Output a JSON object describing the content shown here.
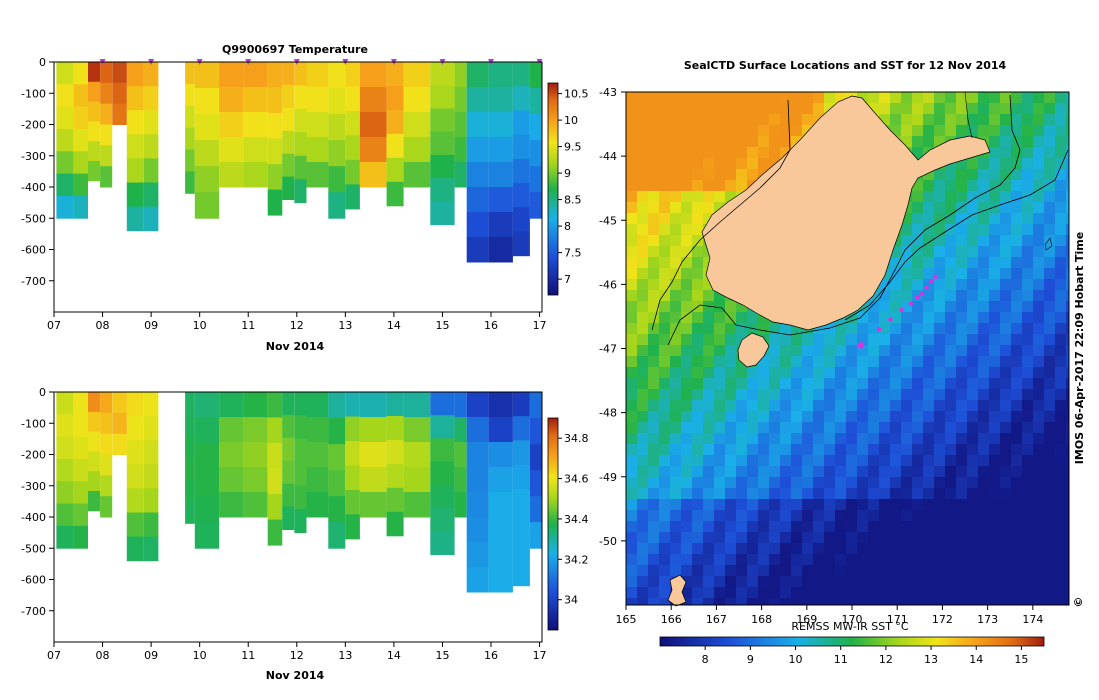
{
  "chart_data": [
    {
      "type": "heatmap",
      "title": "Q9900697  Temperature",
      "xlabel": "Nov 2014",
      "ylabel": "",
      "xlim": [
        7,
        17.05
      ],
      "ylim": [
        -800,
        0
      ],
      "x_tick_labels": [
        "07",
        "08",
        "09",
        "10",
        "11",
        "12",
        "13",
        "14",
        "15",
        "16",
        "17"
      ],
      "y_ticks": [
        0,
        -100,
        -200,
        -300,
        -400,
        -500,
        -600,
        -700
      ],
      "colorbar": {
        "min": 6.7,
        "max": 10.7,
        "ticks": [
          7,
          7.5,
          8,
          8.5,
          9,
          9.5,
          10,
          10.5
        ],
        "tick_labels": [
          "7",
          "7.5",
          "8",
          "8.5",
          "9",
          "9.5",
          "10",
          "10.5"
        ]
      },
      "surface_markers_x": [
        8,
        9,
        10,
        11,
        12,
        13,
        14,
        15,
        16,
        17
      ],
      "profiles": [
        {
          "x": 7.05,
          "w": 0.35,
          "d": -500,
          "s": [
            9.4,
            9.6,
            9.5,
            9.3,
            9.0,
            8.6,
            8.2
          ]
        },
        {
          "x": 7.4,
          "w": 0.3,
          "d": -500,
          "s": [
            9.6,
            9.8,
            9.7,
            9.5,
            9.2,
            8.8,
            8.3
          ]
        },
        {
          "x": 7.7,
          "w": 0.25,
          "d": -380,
          "s": [
            10.6,
            10.0,
            9.8,
            9.6,
            9.3,
            9.0
          ]
        },
        {
          "x": 7.95,
          "w": 0.25,
          "d": -400,
          "s": [
            10.4,
            10.2,
            9.9,
            9.6,
            9.3,
            8.9
          ]
        },
        {
          "x": 8.2,
          "w": 0.3,
          "d": -200,
          "s": [
            10.5,
            10.4,
            10.3
          ]
        },
        {
          "x": 8.5,
          "w": 0.35,
          "d": -540,
          "s": [
            10.0,
            9.8,
            9.6,
            9.4,
            9.2,
            8.7,
            8.4
          ]
        },
        {
          "x": 8.85,
          "w": 0.3,
          "d": -540,
          "s": [
            9.9,
            9.7,
            9.5,
            9.3,
            9.0,
            8.6,
            8.3
          ]
        },
        {
          "x": 9.7,
          "w": 0.2,
          "d": -420,
          "s": [
            9.8,
            9.6,
            9.4,
            9.2,
            9.0,
            8.8
          ]
        },
        {
          "x": 9.9,
          "w": 0.5,
          "d": -500,
          "s": [
            9.8,
            9.6,
            9.5,
            9.3,
            9.1,
            9.0
          ]
        },
        {
          "x": 10.4,
          "w": 0.5,
          "d": -400,
          "s": [
            10.0,
            9.9,
            9.7,
            9.5,
            9.3
          ]
        },
        {
          "x": 10.9,
          "w": 0.5,
          "d": -400,
          "s": [
            10.0,
            9.8,
            9.6,
            9.4,
            9.2
          ]
        },
        {
          "x": 11.4,
          "w": 0.3,
          "d": -490,
          "s": [
            9.9,
            9.8,
            9.6,
            9.4,
            9.1,
            8.7
          ]
        },
        {
          "x": 11.7,
          "w": 0.25,
          "d": -440,
          "s": [
            9.9,
            9.7,
            9.6,
            9.3,
            9.0,
            8.7
          ]
        },
        {
          "x": 11.95,
          "w": 0.25,
          "d": -450,
          "s": [
            9.8,
            9.6,
            9.4,
            9.2,
            8.9,
            8.6
          ]
        },
        {
          "x": 12.2,
          "w": 0.45,
          "d": -400,
          "s": [
            9.7,
            9.6,
            9.4,
            9.2,
            8.9
          ]
        },
        {
          "x": 12.65,
          "w": 0.35,
          "d": -500,
          "s": [
            9.6,
            9.5,
            9.3,
            9.1,
            8.8,
            8.5
          ]
        },
        {
          "x": 13.0,
          "w": 0.3,
          "d": -470,
          "s": [
            9.7,
            9.6,
            9.4,
            9.2,
            9.0,
            8.6
          ]
        },
        {
          "x": 13.3,
          "w": 0.55,
          "d": -400,
          "s": [
            10.0,
            10.2,
            10.4,
            10.2,
            9.8
          ]
        },
        {
          "x": 13.85,
          "w": 0.35,
          "d": -460,
          "s": [
            9.9,
            10.0,
            9.9,
            9.6,
            9.2,
            8.8
          ]
        },
        {
          "x": 14.2,
          "w": 0.55,
          "d": -400,
          "s": [
            9.7,
            9.6,
            9.4,
            9.2,
            8.9
          ]
        },
        {
          "x": 14.75,
          "w": 0.5,
          "d": -520,
          "s": [
            9.3,
            9.2,
            9.0,
            8.9,
            8.7,
            8.5,
            8.4
          ]
        },
        {
          "x": 15.25,
          "w": 0.25,
          "d": -400,
          "s": [
            9.1,
            9.0,
            8.9,
            8.8,
            8.6
          ]
        },
        {
          "x": 15.5,
          "w": 0.45,
          "d": -640,
          "s": [
            8.6,
            8.4,
            8.2,
            8.0,
            7.8,
            7.6,
            7.4,
            7.2
          ]
        },
        {
          "x": 15.95,
          "w": 0.5,
          "d": -640,
          "s": [
            8.5,
            8.4,
            8.2,
            8.0,
            7.8,
            7.5,
            7.2,
            7.0
          ]
        },
        {
          "x": 16.45,
          "w": 0.35,
          "d": -620,
          "s": [
            8.5,
            8.3,
            8.0,
            7.9,
            7.7,
            7.5,
            7.3,
            7.2
          ]
        },
        {
          "x": 16.8,
          "w": 0.25,
          "d": -500,
          "s": [
            8.7,
            8.4,
            8.1,
            7.9,
            7.7,
            7.5
          ]
        }
      ]
    },
    {
      "type": "heatmap",
      "title": "",
      "xlabel": "Nov 2014",
      "ylabel": "",
      "xlim": [
        7,
        17.05
      ],
      "ylim": [
        -800,
        0
      ],
      "x_tick_labels": [
        "07",
        "08",
        "09",
        "10",
        "11",
        "12",
        "13",
        "14",
        "15",
        "16",
        "17"
      ],
      "y_ticks": [
        0,
        -100,
        -200,
        -300,
        -400,
        -500,
        -600,
        -700
      ],
      "colorbar": {
        "min": 33.85,
        "max": 34.9,
        "ticks": [
          34,
          34.2,
          34.4,
          34.6,
          34.8
        ],
        "tick_labels": [
          "34",
          "34.2",
          "34.4",
          "34.6",
          "34.8"
        ]
      },
      "profiles": [
        {
          "x": 7.05,
          "w": 0.35,
          "d": -500,
          "s": [
            34.55,
            34.58,
            34.56,
            34.52,
            34.48,
            34.42,
            34.36
          ]
        },
        {
          "x": 7.4,
          "w": 0.3,
          "d": -500,
          "s": [
            34.6,
            34.6,
            34.58,
            34.55,
            34.5,
            34.44,
            34.38
          ]
        },
        {
          "x": 7.7,
          "w": 0.25,
          "d": -380,
          "s": [
            34.75,
            34.65,
            34.6,
            34.56,
            34.5,
            34.4
          ]
        },
        {
          "x": 7.95,
          "w": 0.25,
          "d": -400,
          "s": [
            34.7,
            34.66,
            34.62,
            34.58,
            34.52,
            34.44
          ]
        },
        {
          "x": 8.2,
          "w": 0.3,
          "d": -200,
          "s": [
            34.65,
            34.68,
            34.62
          ]
        },
        {
          "x": 8.5,
          "w": 0.35,
          "d": -540,
          "s": [
            34.62,
            34.6,
            34.58,
            34.56,
            34.52,
            34.42,
            34.36
          ]
        },
        {
          "x": 8.85,
          "w": 0.3,
          "d": -540,
          "s": [
            34.6,
            34.58,
            34.56,
            34.54,
            34.5,
            34.4,
            34.35
          ]
        },
        {
          "x": 9.7,
          "w": 0.2,
          "d": -420,
          "s": [
            34.35,
            34.36,
            34.37,
            34.38,
            34.37,
            34.36
          ]
        },
        {
          "x": 9.9,
          "w": 0.5,
          "d": -500,
          "s": [
            34.34,
            34.36,
            34.38,
            34.38,
            34.37,
            34.36
          ]
        },
        {
          "x": 10.4,
          "w": 0.5,
          "d": -400,
          "s": [
            34.36,
            34.44,
            34.46,
            34.44,
            34.4
          ]
        },
        {
          "x": 10.9,
          "w": 0.5,
          "d": -400,
          "s": [
            34.38,
            34.46,
            34.48,
            34.46,
            34.42
          ]
        },
        {
          "x": 11.4,
          "w": 0.3,
          "d": -490,
          "s": [
            34.4,
            34.5,
            34.55,
            34.56,
            34.5,
            34.4
          ]
        },
        {
          "x": 11.7,
          "w": 0.25,
          "d": -440,
          "s": [
            34.36,
            34.42,
            34.46,
            34.44,
            34.4,
            34.36
          ]
        },
        {
          "x": 11.95,
          "w": 0.25,
          "d": -450,
          "s": [
            34.36,
            34.4,
            34.42,
            34.42,
            34.4,
            34.36
          ]
        },
        {
          "x": 12.2,
          "w": 0.45,
          "d": -400,
          "s": [
            34.36,
            34.4,
            34.42,
            34.4,
            34.38
          ]
        },
        {
          "x": 12.65,
          "w": 0.35,
          "d": -500,
          "s": [
            34.3,
            34.38,
            34.44,
            34.42,
            34.38,
            34.34
          ]
        },
        {
          "x": 13.0,
          "w": 0.3,
          "d": -470,
          "s": [
            34.28,
            34.48,
            34.54,
            34.5,
            34.44,
            34.38
          ]
        },
        {
          "x": 13.3,
          "w": 0.55,
          "d": -400,
          "s": [
            34.28,
            34.5,
            34.58,
            34.54,
            34.44
          ]
        },
        {
          "x": 13.85,
          "w": 0.35,
          "d": -460,
          "s": [
            34.3,
            34.5,
            34.56,
            34.52,
            34.44,
            34.38
          ]
        },
        {
          "x": 14.2,
          "w": 0.55,
          "d": -400,
          "s": [
            34.3,
            34.46,
            34.52,
            34.5,
            34.42
          ]
        },
        {
          "x": 14.75,
          "w": 0.5,
          "d": -520,
          "s": [
            34.1,
            34.3,
            34.4,
            34.38,
            34.36,
            34.34,
            34.32
          ]
        },
        {
          "x": 15.25,
          "w": 0.25,
          "d": -400,
          "s": [
            34.1,
            34.35,
            34.42,
            34.4,
            34.38
          ]
        },
        {
          "x": 15.5,
          "w": 0.45,
          "d": -640,
          "s": [
            34.0,
            34.1,
            34.14,
            34.14,
            34.15,
            34.16,
            34.18,
            34.2
          ]
        },
        {
          "x": 15.95,
          "w": 0.5,
          "d": -640,
          "s": [
            33.95,
            34.0,
            34.16,
            34.2,
            34.22,
            34.22,
            34.22,
            34.22
          ]
        },
        {
          "x": 16.45,
          "w": 0.35,
          "d": -620,
          "s": [
            33.98,
            34.1,
            34.18,
            34.2,
            34.22,
            34.22,
            34.22,
            34.22
          ]
        },
        {
          "x": 16.8,
          "w": 0.25,
          "d": -500,
          "s": [
            34.1,
            34.05,
            34.0,
            34.05,
            34.1,
            34.2
          ]
        }
      ]
    },
    {
      "type": "heatmap",
      "title": "SealCTD Surface Locations and SST for 12 Nov 2014",
      "xlabel": "",
      "ylabel": "",
      "xlim": [
        165,
        174.8
      ],
      "ylim": [
        -51,
        -43
      ],
      "x_tick_labels": [
        "165",
        "166",
        "167",
        "168",
        "169",
        "170",
        "171",
        "172",
        "173",
        "174"
      ],
      "y_tick_labels": [
        "-43",
        "-44",
        "-45",
        "-46",
        "-47",
        "-48",
        "-49",
        "-50"
      ],
      "colorbar": {
        "label": "REMSS MW-IR SST °C",
        "min": 7,
        "max": 15.5,
        "ticks": [
          8,
          9,
          10,
          11,
          12,
          13,
          14,
          15
        ],
        "tick_labels": [
          "8",
          "9",
          "10",
          "11",
          "12",
          "13",
          "14",
          "15"
        ]
      },
      "sealctd_positions": [
        {
          "lon": 170.2,
          "lat": -46.95
        },
        {
          "lon": 170.6,
          "lat": -46.7
        },
        {
          "lon": 170.85,
          "lat": -46.55
        },
        {
          "lon": 171.1,
          "lat": -46.4
        },
        {
          "lon": 171.3,
          "lat": -46.3
        },
        {
          "lon": 171.45,
          "lat": -46.2
        },
        {
          "lon": 171.55,
          "lat": -46.15
        },
        {
          "lon": 171.65,
          "lat": -46.05
        },
        {
          "lon": 171.75,
          "lat": -45.95
        },
        {
          "lon": 171.85,
          "lat": -45.88
        }
      ],
      "credit": "IMOS 06-Apr-2017 22:09 Hobart Time",
      "copyright_symbol": "©"
    }
  ]
}
